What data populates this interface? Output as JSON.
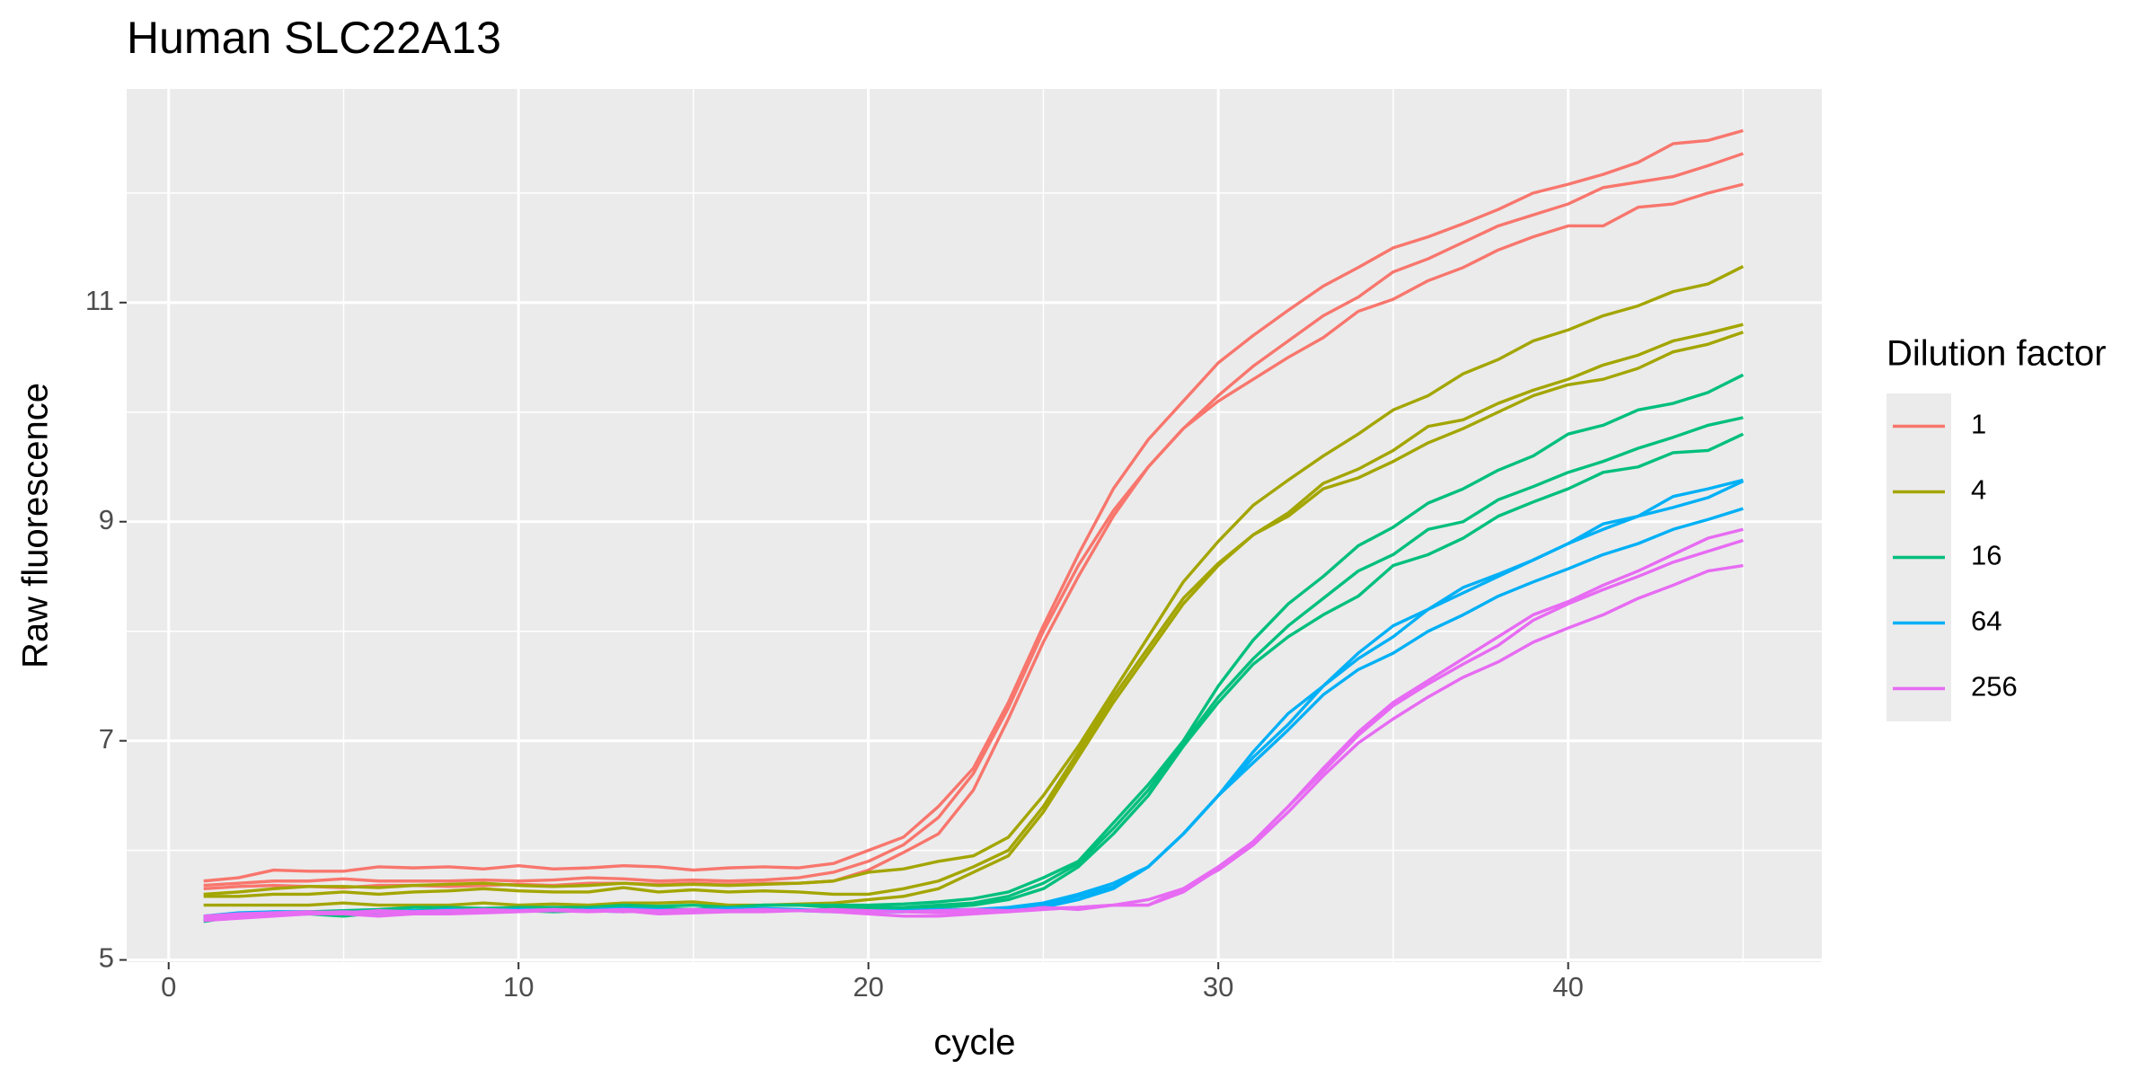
{
  "chart_data": {
    "type": "line",
    "title": "Human SLC22A13",
    "x_label": "cycle",
    "y_label": "Raw fluorescence",
    "legend_title": "Dilution factor",
    "legend_position": "right",
    "xlim": [
      -1.2,
      47.25
    ],
    "ylim": [
      4.98,
      12.95
    ],
    "xticks": [
      0,
      10,
      20,
      30,
      40
    ],
    "yticks": [
      5,
      7,
      9,
      11
    ],
    "x_minor_grid": [
      5,
      15,
      25,
      35,
      45
    ],
    "y_minor_grid": [
      6,
      8,
      10,
      12
    ],
    "grid": true,
    "background": "#ebebeb",
    "x": [
      1,
      2,
      3,
      4,
      5,
      6,
      7,
      8,
      9,
      10,
      11,
      12,
      13,
      14,
      15,
      16,
      17,
      18,
      19,
      20,
      21,
      22,
      23,
      24,
      25,
      26,
      27,
      28,
      29,
      30,
      31,
      32,
      33,
      34,
      35,
      36,
      37,
      38,
      39,
      40,
      41,
      42,
      43,
      44,
      45
    ],
    "series": [
      {
        "name": "1",
        "color": "#F8766D",
        "replicates": [
          [
            5.72,
            5.75,
            5.82,
            5.81,
            5.81,
            5.85,
            5.84,
            5.85,
            5.83,
            5.86,
            5.83,
            5.84,
            5.86,
            5.85,
            5.82,
            5.84,
            5.85,
            5.84,
            5.88,
            6.0,
            6.12,
            6.4,
            6.75,
            7.35,
            8.05,
            8.7,
            9.3,
            9.75,
            10.1,
            10.45,
            10.7,
            10.93,
            11.15,
            11.32,
            11.5,
            11.6,
            11.72,
            11.85,
            12.0,
            12.08,
            12.17,
            12.28,
            12.45,
            12.48,
            12.57
          ],
          [
            5.68,
            5.7,
            5.72,
            5.72,
            5.74,
            5.72,
            5.72,
            5.72,
            5.73,
            5.72,
            5.73,
            5.75,
            5.74,
            5.72,
            5.73,
            5.72,
            5.73,
            5.75,
            5.8,
            5.9,
            6.05,
            6.3,
            6.7,
            7.3,
            8.0,
            8.6,
            9.1,
            9.5,
            9.85,
            10.15,
            10.42,
            10.65,
            10.88,
            11.05,
            11.28,
            11.4,
            11.55,
            11.7,
            11.8,
            11.9,
            12.05,
            12.1,
            12.15,
            12.25,
            12.36
          ],
          [
            5.65,
            5.67,
            5.68,
            5.67,
            5.66,
            5.68,
            5.68,
            5.67,
            5.68,
            5.69,
            5.68,
            5.7,
            5.7,
            5.69,
            5.7,
            5.69,
            5.7,
            5.7,
            5.72,
            5.82,
            5.98,
            6.15,
            6.55,
            7.2,
            7.9,
            8.5,
            9.05,
            9.5,
            9.85,
            10.1,
            10.3,
            10.5,
            10.68,
            10.92,
            11.03,
            11.2,
            11.32,
            11.48,
            11.6,
            11.7,
            11.7,
            11.87,
            11.9,
            12.0,
            12.08
          ]
        ]
      },
      {
        "name": "4",
        "color": "#A3A500",
        "replicates": [
          [
            5.6,
            5.62,
            5.65,
            5.67,
            5.67,
            5.66,
            5.68,
            5.69,
            5.7,
            5.68,
            5.67,
            5.68,
            5.7,
            5.68,
            5.69,
            5.68,
            5.69,
            5.7,
            5.72,
            5.8,
            5.83,
            5.9,
            5.95,
            6.12,
            6.5,
            6.95,
            7.45,
            7.95,
            8.45,
            8.82,
            9.15,
            9.38,
            9.6,
            9.8,
            10.02,
            10.15,
            10.35,
            10.48,
            10.65,
            10.75,
            10.88,
            10.97,
            11.1,
            11.17,
            11.33
          ],
          [
            5.58,
            5.58,
            5.6,
            5.6,
            5.62,
            5.6,
            5.62,
            5.63,
            5.65,
            5.63,
            5.62,
            5.62,
            5.66,
            5.62,
            5.64,
            5.62,
            5.63,
            5.62,
            5.6,
            5.6,
            5.65,
            5.72,
            5.85,
            6.0,
            6.4,
            6.9,
            7.4,
            7.85,
            8.3,
            8.62,
            8.88,
            9.08,
            9.35,
            9.48,
            9.65,
            9.87,
            9.93,
            10.08,
            10.2,
            10.3,
            10.43,
            10.52,
            10.65,
            10.72,
            10.8
          ],
          [
            5.5,
            5.5,
            5.5,
            5.5,
            5.52,
            5.5,
            5.5,
            5.5,
            5.52,
            5.5,
            5.51,
            5.5,
            5.52,
            5.52,
            5.53,
            5.5,
            5.5,
            5.51,
            5.52,
            5.55,
            5.58,
            5.65,
            5.8,
            5.95,
            6.35,
            6.85,
            7.35,
            7.8,
            8.25,
            8.6,
            8.88,
            9.05,
            9.3,
            9.4,
            9.55,
            9.72,
            9.85,
            10.0,
            10.15,
            10.25,
            10.3,
            10.4,
            10.55,
            10.62,
            10.73
          ]
        ]
      },
      {
        "name": "16",
        "color": "#00BF7D",
        "replicates": [
          [
            5.4,
            5.42,
            5.44,
            5.44,
            5.45,
            5.46,
            5.48,
            5.48,
            5.47,
            5.48,
            5.48,
            5.48,
            5.5,
            5.49,
            5.5,
            5.48,
            5.5,
            5.5,
            5.5,
            5.5,
            5.51,
            5.53,
            5.56,
            5.62,
            5.75,
            5.9,
            6.25,
            6.6,
            7.0,
            7.5,
            7.92,
            8.25,
            8.5,
            8.78,
            8.95,
            9.17,
            9.3,
            9.47,
            9.6,
            9.8,
            9.88,
            10.02,
            10.08,
            10.18,
            10.34
          ],
          [
            5.35,
            5.4,
            5.42,
            5.43,
            5.42,
            5.44,
            5.45,
            5.46,
            5.46,
            5.47,
            5.46,
            5.47,
            5.48,
            5.47,
            5.46,
            5.48,
            5.5,
            5.5,
            5.48,
            5.48,
            5.48,
            5.5,
            5.52,
            5.58,
            5.7,
            5.88,
            6.2,
            6.55,
            6.98,
            7.4,
            7.75,
            8.05,
            8.3,
            8.55,
            8.7,
            8.93,
            9.0,
            9.2,
            9.32,
            9.45,
            9.55,
            9.67,
            9.77,
            9.88,
            9.95
          ],
          [
            5.38,
            5.42,
            5.41,
            5.42,
            5.4,
            5.43,
            5.44,
            5.45,
            5.44,
            5.45,
            5.44,
            5.45,
            5.46,
            5.45,
            5.44,
            5.46,
            5.46,
            5.45,
            5.46,
            5.47,
            5.47,
            5.48,
            5.5,
            5.55,
            5.65,
            5.85,
            6.15,
            6.5,
            6.95,
            7.35,
            7.7,
            7.95,
            8.15,
            8.32,
            8.6,
            8.7,
            8.85,
            9.05,
            9.18,
            9.3,
            9.45,
            9.5,
            9.63,
            9.65,
            9.8
          ]
        ]
      },
      {
        "name": "64",
        "color": "#00B0F6",
        "replicates": [
          [
            5.36,
            5.4,
            5.42,
            5.43,
            5.43,
            5.44,
            5.44,
            5.45,
            5.45,
            5.46,
            5.45,
            5.46,
            5.46,
            5.45,
            5.46,
            5.46,
            5.47,
            5.46,
            5.45,
            5.45,
            5.45,
            5.46,
            5.46,
            5.48,
            5.52,
            5.6,
            5.7,
            5.85,
            6.15,
            6.5,
            6.9,
            7.25,
            7.5,
            7.8,
            8.05,
            8.2,
            8.4,
            8.52,
            8.65,
            8.8,
            8.98,
            9.05,
            9.23,
            9.3,
            9.38
          ],
          [
            5.38,
            5.41,
            5.42,
            5.42,
            5.44,
            5.43,
            5.45,
            5.44,
            5.46,
            5.45,
            5.46,
            5.45,
            5.44,
            5.46,
            5.45,
            5.47,
            5.46,
            5.45,
            5.44,
            5.44,
            5.44,
            5.45,
            5.45,
            5.47,
            5.5,
            5.58,
            5.67,
            5.85,
            6.15,
            6.5,
            6.85,
            7.15,
            7.5,
            7.75,
            7.95,
            8.2,
            8.35,
            8.5,
            8.65,
            8.8,
            8.93,
            9.05,
            9.13,
            9.22,
            9.37
          ],
          [
            5.4,
            5.43,
            5.44,
            5.44,
            5.43,
            5.45,
            5.44,
            5.46,
            5.45,
            5.46,
            5.45,
            5.46,
            5.47,
            5.46,
            5.45,
            5.46,
            5.46,
            5.45,
            5.45,
            5.44,
            5.44,
            5.45,
            5.44,
            5.46,
            5.48,
            5.55,
            5.65,
            5.85,
            6.15,
            6.5,
            6.8,
            7.1,
            7.42,
            7.65,
            7.8,
            8.0,
            8.15,
            8.32,
            8.45,
            8.57,
            8.7,
            8.8,
            8.93,
            9.02,
            9.12
          ]
        ]
      },
      {
        "name": "256",
        "color": "#E76BF3",
        "replicates": [
          [
            5.36,
            5.38,
            5.4,
            5.42,
            5.42,
            5.4,
            5.42,
            5.42,
            5.43,
            5.44,
            5.45,
            5.44,
            5.45,
            5.42,
            5.43,
            5.44,
            5.44,
            5.45,
            5.44,
            5.42,
            5.4,
            5.4,
            5.42,
            5.44,
            5.46,
            5.48,
            5.5,
            5.55,
            5.65,
            5.85,
            6.08,
            6.4,
            6.75,
            7.08,
            7.35,
            7.55,
            7.75,
            7.95,
            8.15,
            8.27,
            8.42,
            8.55,
            8.7,
            8.85,
            8.93
          ],
          [
            5.38,
            5.4,
            5.42,
            5.43,
            5.44,
            5.43,
            5.44,
            5.45,
            5.44,
            5.45,
            5.46,
            5.45,
            5.44,
            5.45,
            5.44,
            5.45,
            5.46,
            5.45,
            5.46,
            5.44,
            5.44,
            5.43,
            5.44,
            5.44,
            5.48,
            5.46,
            5.5,
            5.5,
            5.62,
            5.83,
            6.08,
            6.4,
            6.72,
            7.05,
            7.32,
            7.52,
            7.7,
            7.87,
            8.1,
            8.25,
            8.38,
            8.5,
            8.63,
            8.73,
            8.83
          ],
          [
            5.4,
            5.42,
            5.43,
            5.44,
            5.43,
            5.45,
            5.44,
            5.45,
            5.46,
            5.45,
            5.46,
            5.45,
            5.46,
            5.45,
            5.46,
            5.45,
            5.46,
            5.45,
            5.46,
            5.45,
            5.44,
            5.45,
            5.46,
            5.45,
            5.47,
            5.48,
            5.5,
            5.5,
            5.65,
            5.82,
            6.05,
            6.35,
            6.68,
            6.98,
            7.2,
            7.4,
            7.58,
            7.72,
            7.9,
            8.03,
            8.15,
            8.3,
            8.42,
            8.55,
            8.6
          ]
        ]
      }
    ]
  }
}
